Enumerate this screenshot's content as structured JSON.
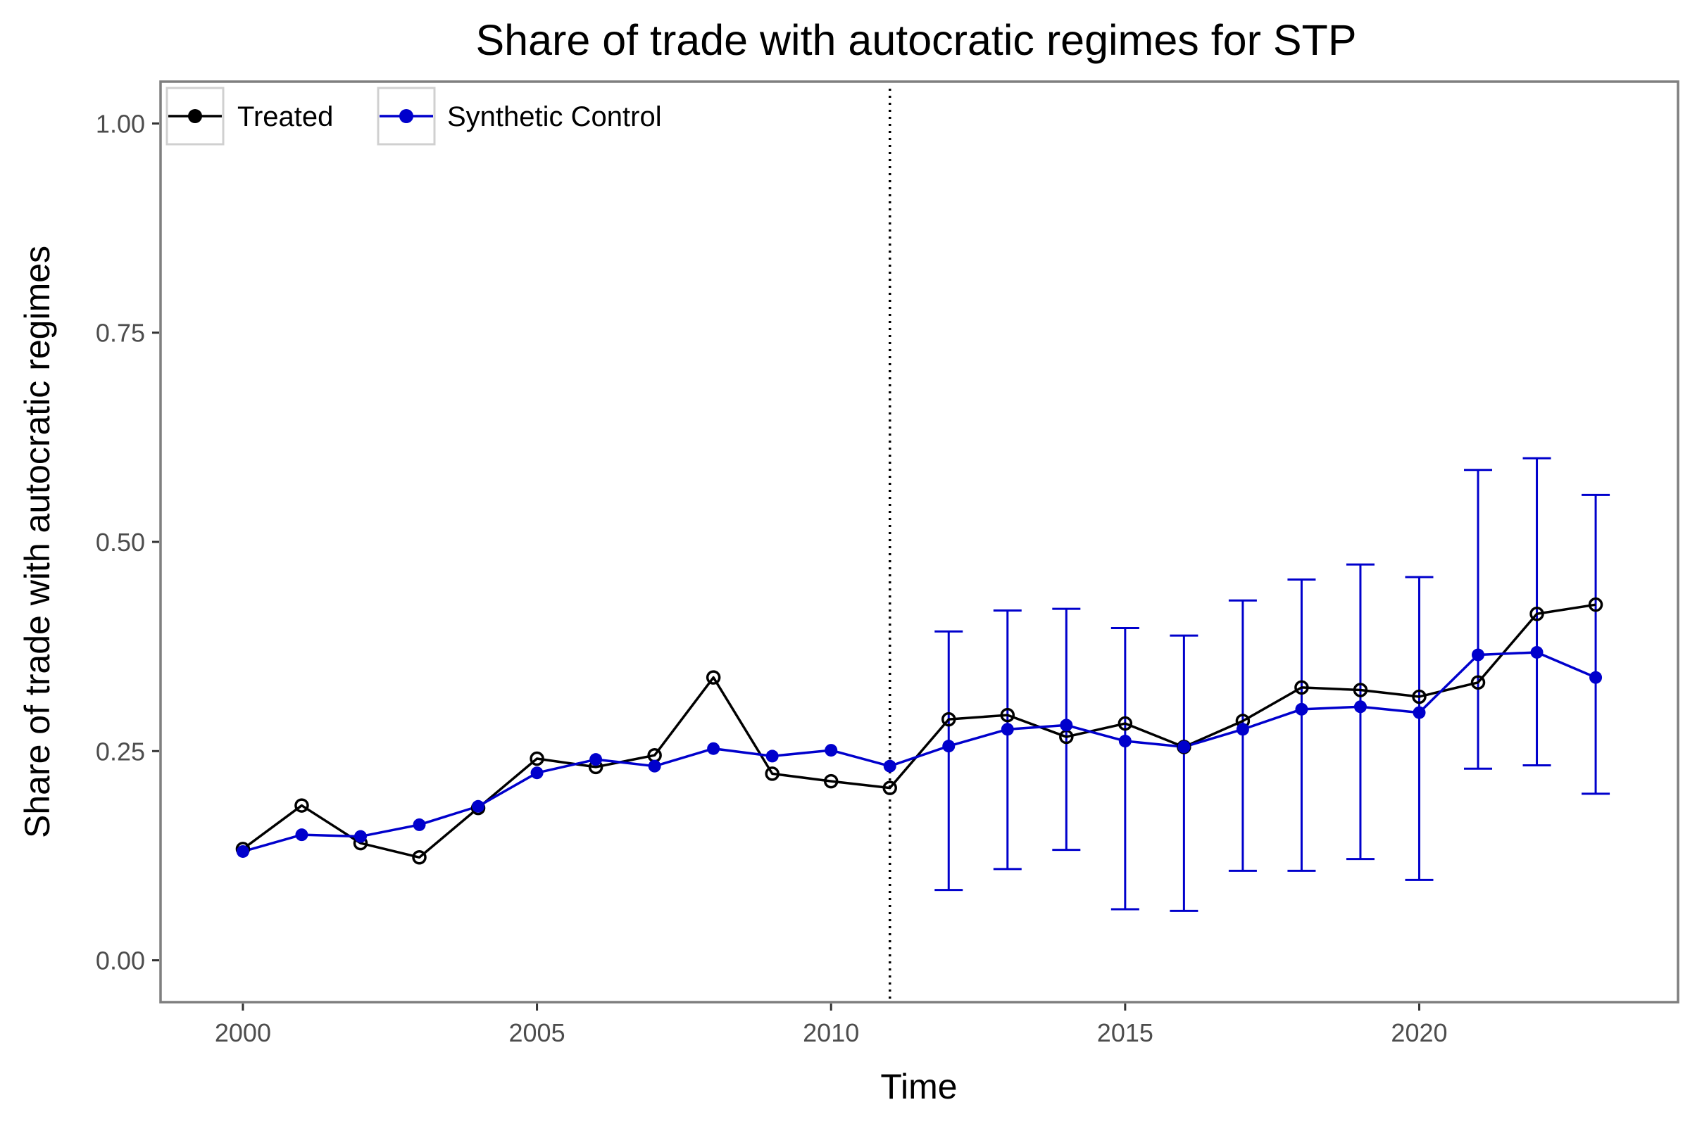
{
  "chart_data": {
    "type": "line",
    "title": "Share of trade with autocratic regimes for STP",
    "xlabel": "Time",
    "ylabel": "Share of trade with autocratic regimes",
    "xlim": [
      1998.6,
      2024.4
    ],
    "ylim": [
      -0.05,
      1.05
    ],
    "x_ticks": [
      2000,
      2005,
      2010,
      2015,
      2020
    ],
    "x_tick_labels": [
      "2000",
      "2005",
      "2010",
      "2015",
      "2020"
    ],
    "y_ticks": [
      0,
      0.25,
      0.5,
      0.75,
      1
    ],
    "y_tick_labels": [
      "0.00",
      "0.25",
      "0.50",
      "0.75",
      "1.00"
    ],
    "grid": false,
    "treatment_year": 2011,
    "legend_position": "top-left",
    "x": [
      2000,
      2001,
      2002,
      2003,
      2004,
      2005,
      2006,
      2007,
      2008,
      2009,
      2010,
      2011,
      2012,
      2013,
      2014,
      2015,
      2016,
      2017,
      2018,
      2019,
      2020,
      2021,
      2022,
      2023
    ],
    "series": [
      {
        "name": "Treated",
        "color": "#000000",
        "marker": "open-circle",
        "values": [
          0.133,
          0.185,
          0.14,
          0.123,
          0.182,
          0.241,
          0.231,
          0.245,
          0.338,
          0.223,
          0.214,
          0.206,
          0.288,
          0.293,
          0.267,
          0.283,
          0.255,
          0.286,
          0.326,
          0.323,
          0.315,
          0.332,
          0.414,
          0.425
        ]
      },
      {
        "name": "Synthetic Control",
        "color": "#0000cc",
        "marker": "filled-circle",
        "values": [
          0.13,
          0.15,
          0.148,
          0.162,
          0.184,
          0.224,
          0.24,
          0.232,
          0.253,
          0.244,
          0.251,
          0.232,
          0.256,
          0.276,
          0.281,
          0.262,
          0.255,
          0.276,
          0.3,
          0.303,
          0.296,
          0.365,
          0.368,
          0.338
        ],
        "error_bars": {
          "x": [
            2012,
            2013,
            2014,
            2015,
            2016,
            2017,
            2018,
            2019,
            2020,
            2021,
            2022,
            2023
          ],
          "lower": [
            0.084,
            0.109,
            0.132,
            0.061,
            0.059,
            0.107,
            0.107,
            0.121,
            0.096,
            0.229,
            0.233,
            0.199
          ],
          "upper": [
            0.393,
            0.418,
            0.42,
            0.397,
            0.388,
            0.43,
            0.455,
            0.473,
            0.458,
            0.586,
            0.6,
            0.556
          ]
        }
      }
    ]
  }
}
